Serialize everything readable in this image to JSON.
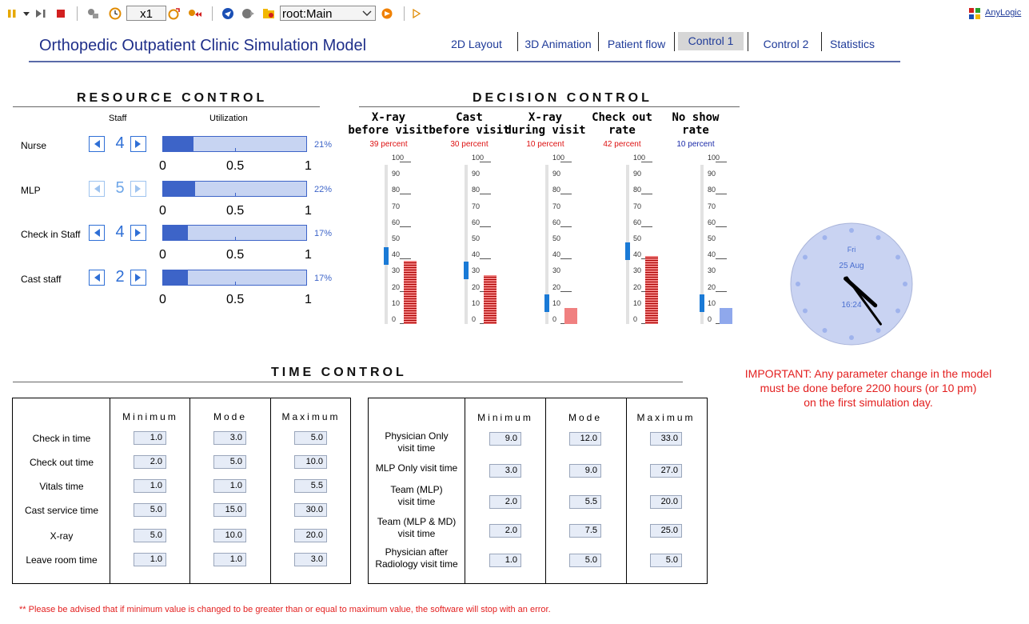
{
  "toolbar": {
    "speed": "x1",
    "view_select": "root:Main",
    "brand": "AnyLogic",
    "colors": {
      "pause": "#e6a800",
      "stop": "#d21f1f",
      "blue": "#1a4fb5",
      "orange": "#f08000"
    }
  },
  "header": {
    "title": "Orthopedic Outpatient Clinic Simulation Model",
    "tabs": [
      "2D Layout",
      "3D Animation",
      "Patient flow",
      "Control 1",
      "Control 2",
      "Statistics"
    ],
    "active_tab": "Control 1"
  },
  "resource": {
    "title": "RESOURCE CONTROL",
    "col_staff": "Staff",
    "col_util": "Utilization",
    "scale": [
      "0",
      "0.5",
      "1"
    ],
    "rows": [
      {
        "name": "Nurse",
        "count": "4",
        "pct_text": "21%",
        "util": 0.21,
        "minus_enabled": true,
        "plus_enabled": true
      },
      {
        "name": "MLP",
        "count": "5",
        "pct_text": "22%",
        "util": 0.22,
        "minus_enabled": false,
        "plus_enabled": false
      },
      {
        "name": "Check in Staff",
        "count": "4",
        "pct_text": "17%",
        "util": 0.17,
        "minus_enabled": true,
        "plus_enabled": true
      },
      {
        "name": "Cast staff",
        "count": "2",
        "pct_text": "17%",
        "util": 0.17,
        "minus_enabled": true,
        "plus_enabled": true
      }
    ]
  },
  "decision": {
    "title": "DECISION CONTROL",
    "scale": [
      "100",
      "90",
      "80",
      "70",
      "60",
      "50",
      "40",
      "30",
      "20",
      "10",
      "0"
    ],
    "items": [
      {
        "l1": "X-ray",
        "l2": "before visit",
        "pct_text": "39 percent",
        "value": 39,
        "color": "red"
      },
      {
        "l1": "Cast",
        "l2": "before visit",
        "pct_text": "30 percent",
        "value": 30,
        "color": "red"
      },
      {
        "l1": "X-ray",
        "l2": "during visit",
        "pct_text": "10 percent",
        "value": 10,
        "color": "red"
      },
      {
        "l1": "Check out",
        "l2": "rate",
        "pct_text": "42 percent",
        "value": 42,
        "color": "red"
      },
      {
        "l1": "No show",
        "l2": "rate",
        "pct_text": "10 percent",
        "value": 10,
        "color": "blue"
      }
    ]
  },
  "clock": {
    "day": "Fri",
    "date": "25 Aug",
    "time": "16:24"
  },
  "important": {
    "l1": "IMPORTANT: Any parameter change in the model",
    "l2": "must be done before 2200 hours (or 10 pm)",
    "l3": "on the first simulation day."
  },
  "time": {
    "title": "TIME CONTROL",
    "cols": [
      "Minimum",
      "Mode",
      "Maximum"
    ],
    "left_rows": [
      {
        "label": "Check in time",
        "min": "1.0",
        "mode": "3.0",
        "max": "5.0"
      },
      {
        "label": "Check out time",
        "min": "2.0",
        "mode": "5.0",
        "max": "10.0"
      },
      {
        "label": "Vitals time",
        "min": "1.0",
        "mode": "1.0",
        "max": "5.5"
      },
      {
        "label": "Cast service time",
        "min": "5.0",
        "mode": "15.0",
        "max": "30.0"
      },
      {
        "label": "X-ray",
        "min": "5.0",
        "mode": "10.0",
        "max": "20.0"
      },
      {
        "label": "Leave room time",
        "min": "1.0",
        "mode": "1.0",
        "max": "3.0"
      }
    ],
    "right_rows": [
      {
        "l1": "Physician Only",
        "l2": "visit time",
        "min": "9.0",
        "mode": "12.0",
        "max": "33.0"
      },
      {
        "l1": "MLP Only visit time",
        "l2": "",
        "min": "3.0",
        "mode": "9.0",
        "max": "27.0"
      },
      {
        "l1": "Team (MLP)",
        "l2": "visit time",
        "min": "2.0",
        "mode": "5.5",
        "max": "20.0"
      },
      {
        "l1": "Team (MLP & MD)",
        "l2": "visit time",
        "min": "2.0",
        "mode": "7.5",
        "max": "25.0"
      },
      {
        "l1": "Physician after",
        "l2": "Radiology visit time",
        "min": "1.0",
        "mode": "5.0",
        "max": "5.0"
      }
    ]
  },
  "note": "** Please be advised that if minimum value is changed to be greater than or equal to maximum value, the software will stop with an error."
}
